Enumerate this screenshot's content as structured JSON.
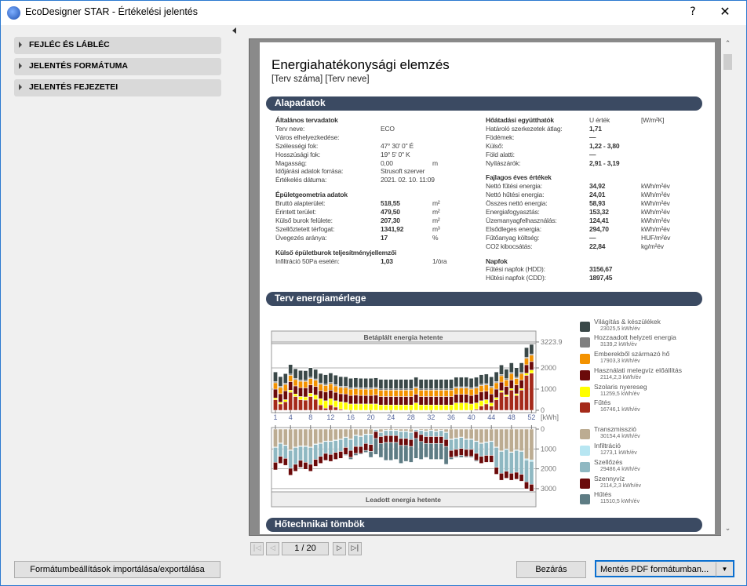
{
  "window": {
    "title": "EcoDesigner STAR - Értékelési jelentés",
    "help": "?",
    "close": "✕"
  },
  "sidebar": {
    "items": [
      {
        "label": "FEJLÉC ÉS LÁBLÉC"
      },
      {
        "label": "JELENTÉS FORMÁTUMA"
      },
      {
        "label": "JELENTÉS FEJEZETEI"
      }
    ],
    "import_export": "Formátumbeállítások importálása/exportálása"
  },
  "report": {
    "title": "Energiahatékonysági elemzés",
    "subtitle": "[Terv száma] [Terv neve]",
    "sections": [
      "Alapadatok",
      "Terv energiamérlege",
      "Hőtechnikai tömbök"
    ],
    "groups": [
      {
        "heading": "Általános tervadatok",
        "col": "left",
        "rows": [
          {
            "label": "Terv neve:",
            "value": "ECO",
            "unit": ""
          },
          {
            "label": "Város elhelyezkedése:",
            "value": "",
            "unit": ""
          },
          {
            "label": "Szélességi fok:",
            "value": "47° 30' 0\" É",
            "unit": ""
          },
          {
            "label": "Hosszúsági fok:",
            "value": "19° 5' 0\" K",
            "unit": ""
          },
          {
            "label": "Magasság:",
            "value": "0,00",
            "unit": "m"
          },
          {
            "label": "Időjárási adatok forrása:",
            "value": "Strusoft szerver",
            "unit": ""
          },
          {
            "label": "Értékelés dátuma:",
            "value": "2021. 02. 10. 11:09",
            "unit": ""
          }
        ]
      },
      {
        "heading": "Épületgeometria adatok",
        "col": "left",
        "bold": true,
        "rows": [
          {
            "label": "Bruttó alapterület:",
            "value": "518,55",
            "unit": "m²"
          },
          {
            "label": "Érintett terület:",
            "value": "479,50",
            "unit": "m²"
          },
          {
            "label": "Külső burok felülete:",
            "value": "207,30",
            "unit": "m²"
          },
          {
            "label": "Szellőztetett térfogat:",
            "value": "1341,92",
            "unit": "m³"
          },
          {
            "label": "Üvegezés aránya:",
            "value": "17",
            "unit": "%"
          }
        ]
      },
      {
        "heading": "Külső épületburok teljesítményjellemzői",
        "col": "left",
        "bold": true,
        "rows": [
          {
            "label": "Infiltráció 50Pa esetén:",
            "value": "1,03",
            "unit": "1/óra"
          }
        ]
      },
      {
        "heading": "Hőátadási együtthatók",
        "col": "right",
        "bold": true,
        "head_value": "U érték",
        "head_unit": "[W/m²K]",
        "rows": [
          {
            "label": "Határoló szerkezetek átlag:",
            "value": "1,71",
            "unit": ""
          },
          {
            "label": "Födémek:",
            "value": "—",
            "unit": ""
          },
          {
            "label": "Külső:",
            "value": "1,22 - 3,80",
            "unit": ""
          },
          {
            "label": "Föld alatti:",
            "value": "—",
            "unit": ""
          },
          {
            "label": "Nyílászárók:",
            "value": "2,91 - 3,19",
            "unit": ""
          }
        ]
      },
      {
        "heading": "Fajlagos éves értékek",
        "col": "right",
        "bold": true,
        "rows": [
          {
            "label": "Nettó fűtési energia:",
            "value": "34,92",
            "unit": "kWh/m²év"
          },
          {
            "label": "Nettó hűtési energia:",
            "value": "24,01",
            "unit": "kWh/m²év"
          },
          {
            "label": "Összes nettó energia:",
            "value": "58,93",
            "unit": "kWh/m²év"
          },
          {
            "label": "Energiafogyasztás:",
            "value": "153,32",
            "unit": "kWh/m²év"
          },
          {
            "label": "Üzemanyagfelhasználás:",
            "value": "124,41",
            "unit": "kWh/m²év"
          },
          {
            "label": "Elsődleges energia:",
            "value": "294,70",
            "unit": "kWh/m²év"
          },
          {
            "label": "Fűtőanyag költség:",
            "value": "—",
            "unit": "HUF/m²év"
          },
          {
            "label": "CO2 kibocsátás:",
            "value": "22,84",
            "unit": "kg/m²év"
          }
        ]
      },
      {
        "heading": "Napfok",
        "col": "right",
        "bold": true,
        "rows": [
          {
            "label": "Fűtési napfok (HDD):",
            "value": "3156,67",
            "unit": ""
          },
          {
            "label": "Hűtési napfok (CDD):",
            "value": "1897,45",
            "unit": ""
          }
        ]
      }
    ]
  },
  "chart_data": [
    {
      "type": "bar",
      "stacked": true,
      "title": "Betáplált energia hetente",
      "xlabel": "",
      "ylabel": "[kWh]",
      "ylim": [
        0,
        3223.9
      ],
      "y_ticks": [
        "3223.9",
        "2000",
        "1000",
        "0"
      ],
      "x_ticks": [
        "1",
        "4",
        "8",
        "12",
        "16",
        "20",
        "24",
        "28",
        "32",
        "36",
        "40",
        "44",
        "48",
        "52"
      ],
      "x": "weeks 1-52",
      "series": [
        {
          "name": "Fűtés",
          "color": "#a52a1a",
          "values": [
            500,
            300,
            400,
            850,
            650,
            500,
            480,
            650,
            520,
            250,
            100,
            250,
            150,
            50,
            20,
            0,
            0,
            0,
            0,
            0,
            0,
            0,
            0,
            0,
            0,
            0,
            0,
            0,
            0,
            0,
            0,
            0,
            0,
            0,
            0,
            0,
            0,
            0,
            0,
            0,
            50,
            200,
            300,
            200,
            500,
            850,
            650,
            950,
            700,
            950,
            1650,
            1750
          ]
        },
        {
          "name": "Szolaris nyereseg",
          "color": "#ffff00",
          "values": [
            80,
            80,
            100,
            100,
            120,
            150,
            150,
            150,
            200,
            300,
            350,
            300,
            300,
            350,
            350,
            300,
            300,
            300,
            300,
            300,
            300,
            250,
            250,
            250,
            250,
            250,
            250,
            250,
            350,
            250,
            250,
            250,
            250,
            250,
            250,
            250,
            350,
            350,
            350,
            300,
            300,
            250,
            200,
            150,
            100,
            80,
            80,
            80,
            80,
            80,
            100,
            150
          ]
        },
        {
          "name": "Használati melegvíz előállítás",
          "color": "#6b0a0a",
          "values": [
            420,
            400,
            420,
            400,
            380,
            420,
            430,
            400,
            400,
            380,
            420,
            400,
            400,
            380,
            400,
            400,
            420,
            400,
            400,
            400,
            420,
            400,
            400,
            400,
            400,
            400,
            400,
            400,
            400,
            400,
            400,
            400,
            400,
            400,
            400,
            400,
            400,
            400,
            400,
            400,
            400,
            420,
            400,
            420,
            400,
            400,
            400,
            400,
            420,
            400,
            400,
            400
          ]
        },
        {
          "name": "Emberekből származó hő",
          "color": "#f39200",
          "values": [
            300,
            300,
            300,
            300,
            300,
            300,
            300,
            300,
            300,
            300,
            300,
            300,
            300,
            300,
            300,
            300,
            300,
            300,
            300,
            300,
            300,
            300,
            300,
            300,
            300,
            300,
            300,
            300,
            300,
            300,
            300,
            300,
            300,
            300,
            300,
            300,
            300,
            300,
            300,
            300,
            300,
            300,
            300,
            300,
            300,
            300,
            300,
            300,
            300,
            300,
            300,
            300
          ]
        },
        {
          "name": "Hozzáadott helyzeti energia",
          "color": "#7f7f7f",
          "values": [
            60,
            60,
            60,
            60,
            60,
            60,
            60,
            60,
            60,
            60,
            60,
            60,
            60,
            60,
            60,
            60,
            60,
            60,
            60,
            60,
            60,
            60,
            60,
            60,
            60,
            60,
            60,
            60,
            60,
            60,
            60,
            60,
            60,
            60,
            60,
            60,
            60,
            60,
            60,
            60,
            60,
            60,
            60,
            60,
            60,
            60,
            60,
            60,
            60,
            60,
            60,
            60
          ]
        },
        {
          "name": "Világítás & készülékek",
          "color": "#3a4848",
          "values": [
            450,
            450,
            450,
            450,
            450,
            450,
            450,
            450,
            450,
            450,
            450,
            450,
            450,
            450,
            450,
            450,
            450,
            450,
            450,
            450,
            450,
            450,
            450,
            450,
            450,
            450,
            450,
            450,
            450,
            450,
            450,
            450,
            450,
            450,
            450,
            450,
            450,
            450,
            450,
            450,
            450,
            450,
            450,
            450,
            450,
            450,
            450,
            450,
            450,
            450,
            450,
            450
          ]
        }
      ]
    },
    {
      "type": "bar",
      "stacked": true,
      "direction": "down",
      "title": "Leadott energia hetente",
      "ylim": [
        0,
        3200
      ],
      "y_ticks": [
        "0",
        "1000",
        "2000",
        "3000"
      ],
      "series": [
        {
          "name": "Transzmisszió",
          "color": "#bcac92",
          "values": [
            900,
            700,
            800,
            1050,
            900,
            850,
            850,
            900,
            750,
            700,
            600,
            600,
            550,
            500,
            400,
            500,
            300,
            350,
            250,
            250,
            0,
            150,
            50,
            50,
            50,
            100,
            100,
            150,
            0,
            50,
            100,
            50,
            100,
            50,
            150,
            500,
            450,
            400,
            500,
            500,
            600,
            700,
            650,
            600,
            900,
            1100,
            1000,
            1150,
            1050,
            1100,
            1500,
            1550
          ]
        },
        {
          "name": "Infiltráció",
          "color": "#b7e6f2",
          "values": [
            25,
            25,
            25,
            25,
            25,
            25,
            25,
            25,
            25,
            25,
            25,
            25,
            25,
            25,
            25,
            25,
            25,
            25,
            25,
            25,
            25,
            25,
            25,
            25,
            25,
            25,
            25,
            25,
            25,
            25,
            25,
            25,
            25,
            25,
            25,
            25,
            25,
            25,
            25,
            25,
            25,
            25,
            25,
            25,
            25,
            25,
            25,
            25,
            25,
            25,
            60,
            80
          ]
        },
        {
          "name": "Szellőzés",
          "color": "#8fb8c2",
          "values": [
            750,
            650,
            650,
            900,
            850,
            700,
            800,
            850,
            750,
            650,
            600,
            650,
            600,
            600,
            500,
            550,
            550,
            500,
            450,
            500,
            100,
            200,
            250,
            250,
            250,
            350,
            350,
            350,
            100,
            200,
            250,
            300,
            250,
            300,
            350,
            550,
            550,
            550,
            500,
            500,
            600,
            650,
            650,
            700,
            1000,
            1100,
            1100,
            1050,
            1100,
            1150,
            1100,
            1150
          ]
        },
        {
          "name": "Szennyvíz",
          "color": "#6b0a0a",
          "values": [
            380,
            350,
            350,
            350,
            350,
            350,
            350,
            350,
            350,
            350,
            350,
            350,
            350,
            350,
            350,
            350,
            350,
            350,
            350,
            350,
            350,
            350,
            350,
            350,
            350,
            350,
            350,
            350,
            350,
            350,
            350,
            350,
            350,
            350,
            350,
            350,
            350,
            350,
            350,
            350,
            350,
            350,
            350,
            350,
            350,
            350,
            350,
            350,
            350,
            350,
            350,
            350
          ]
        },
        {
          "name": "Hűtés",
          "color": "#5e7c84",
          "values": [
            0,
            0,
            0,
            0,
            0,
            0,
            0,
            0,
            0,
            0,
            0,
            0,
            0,
            0,
            50,
            100,
            100,
            50,
            100,
            300,
            800,
            700,
            900,
            900,
            850,
            900,
            800,
            800,
            1000,
            900,
            700,
            800,
            800,
            800,
            900,
            100,
            50,
            100,
            50,
            50,
            50,
            0,
            0,
            0,
            0,
            0,
            0,
            0,
            0,
            0,
            0,
            0
          ]
        }
      ]
    }
  ],
  "legend": {
    "input": [
      {
        "label": "Világítás & készülékek",
        "value": "23025,5 kWh/év",
        "color": "#3a4848"
      },
      {
        "label": "Hozzaadott helyzeti energia",
        "value": "3139,2 kWh/év",
        "color": "#7f7f7f"
      },
      {
        "label": "Emberekből származó hő",
        "value": "17903,3 kWh/év",
        "color": "#f39200"
      },
      {
        "label": "Használati melegvíz előállítás",
        "value": "2114,2,3 kWh/év",
        "color": "#6b0a0a"
      },
      {
        "label": "Szolaris nyereseg",
        "value": "11259,5 kWh/év",
        "color": "#ffff00"
      },
      {
        "label": "Fűtés",
        "value": "16746,1 kWh/év",
        "color": "#a52a1a"
      }
    ],
    "output": [
      {
        "label": "Transzmisszió",
        "value": "30154,4 kWh/év",
        "color": "#bcac92"
      },
      {
        "label": "Infiltráció",
        "value": "1273,1 kWh/év",
        "color": "#b7e6f2"
      },
      {
        "label": "Szellőzés",
        "value": "29486,4 kWh/év",
        "color": "#8fb8c2"
      },
      {
        "label": "Szennyvíz",
        "value": "2114,2,3 kWh/év",
        "color": "#6b0a0a"
      },
      {
        "label": "Hűtés",
        "value": "11510,5 kWh/év",
        "color": "#5e7c84"
      }
    ]
  },
  "pager": {
    "current": "1 / 20"
  },
  "footer": {
    "close": "Bezárás",
    "save_pdf": "Mentés PDF formátumban..."
  }
}
